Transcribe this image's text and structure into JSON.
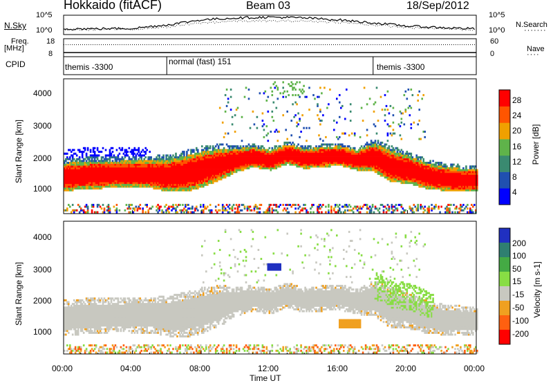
{
  "header": {
    "station": "Hokkaido (fitACF)",
    "beam": "Beam 03",
    "date": "18/Sep/2012"
  },
  "left_labels": {
    "nsky": "N.Sky",
    "freq_line1": "Freq.",
    "freq_line2": "[MHz]",
    "cpid": "CPID"
  },
  "right_labels": {
    "nsearch": "N.Search",
    "nave": "Nave"
  },
  "chart_data": [
    {
      "type": "line",
      "panel": "noise",
      "left_ticks": [
        "10^5",
        "10^0"
      ],
      "right_ticks": [
        "10^5",
        "10^0"
      ],
      "series": [
        {
          "name": "N.Sky",
          "x": [
            0,
            2,
            4,
            6,
            8,
            10,
            12,
            14,
            16,
            18,
            20,
            22,
            24
          ],
          "values": [
            1.5,
            1.5,
            1.6,
            2.5,
            3.8,
            4.3,
            4.5,
            4.3,
            3.8,
            3.0,
            2.2,
            1.8,
            1.5
          ]
        },
        {
          "name": "N.Search",
          "x": [
            0,
            2,
            4,
            6,
            8,
            10,
            12,
            14,
            16,
            18,
            20,
            22,
            24
          ],
          "values": [
            1.2,
            1.3,
            1.4,
            2.0,
            3.0,
            3.5,
            3.5,
            3.5,
            3.2,
            2.5,
            1.8,
            1.5,
            1.2
          ]
        }
      ]
    },
    {
      "type": "line",
      "panel": "freq_nave",
      "left_ticks": [
        "18",
        "8"
      ],
      "right_ticks": [
        "60",
        "0"
      ],
      "series": [
        {
          "name": "Freq.",
          "x": [
            0,
            24
          ],
          "values": [
            10.3,
            10.3
          ]
        },
        {
          "name": "Nave",
          "x": [
            0,
            24
          ],
          "values": [
            40,
            40
          ]
        }
      ]
    },
    {
      "type": "table",
      "panel": "cpid",
      "segments": [
        {
          "label": "themis -3300",
          "start": 0,
          "end": 6
        },
        {
          "label": "normal (fast) 151",
          "start": 6,
          "end": 18
        },
        {
          "label": "themis -3300",
          "start": 18,
          "end": 24
        }
      ]
    },
    {
      "type": "heatmap",
      "panel": "power",
      "ylabel": "Slant Range [km]",
      "yticks": [
        "4000",
        "3000",
        "2000",
        "1000"
      ],
      "ylim": [
        180,
        4600
      ],
      "colorbar_label": "Power [dB]",
      "colorbar_ticks": [
        "28",
        "24",
        "20",
        "16",
        "12",
        "8",
        "4"
      ],
      "colorbar_range": [
        0,
        32
      ],
      "colors": [
        "#0000ff",
        "#2050b0",
        "#3a8a70",
        "#5fb34a",
        "#f0a000",
        "#ff5500",
        "#ff0000"
      ],
      "band_x": [
        0,
        1,
        2,
        3,
        4,
        5,
        6,
        7,
        8,
        9,
        10,
        11,
        12,
        13,
        14,
        15,
        16,
        17,
        18,
        19,
        20,
        21,
        22,
        23,
        24
      ],
      "band_center_km": [
        1350,
        1400,
        1420,
        1450,
        1450,
        1450,
        1400,
        1450,
        1600,
        1750,
        1900,
        2000,
        1900,
        2100,
        1950,
        2000,
        2050,
        1900,
        2000,
        1700,
        1600,
        1400,
        1300,
        1250,
        1250
      ],
      "band_width_km": [
        700,
        700,
        700,
        650,
        700,
        700,
        800,
        900,
        900,
        800,
        600,
        500,
        500,
        500,
        500,
        500,
        500,
        500,
        700,
        800,
        700,
        650,
        600,
        600,
        600
      ]
    },
    {
      "type": "heatmap",
      "panel": "velocity",
      "ylabel": "Slant Range [km]",
      "yticks": [
        "4000",
        "3000",
        "2000",
        "1000"
      ],
      "ylim": [
        180,
        4600
      ],
      "colorbar_label": "Velocity [m s-1]",
      "colorbar_ticks": [
        "200",
        "100",
        "50",
        "15",
        "-15",
        "-50",
        "-100",
        "-200"
      ],
      "colorbar_range": [
        -250,
        250
      ],
      "colors": [
        "#2030c0",
        "#2f7f70",
        "#44aa44",
        "#88dd44",
        "#c8c8c0",
        "#f0a020",
        "#ff6010",
        "#ff0000"
      ],
      "band_x": [
        0,
        1,
        2,
        3,
        4,
        5,
        6,
        7,
        8,
        9,
        10,
        11,
        12,
        13,
        14,
        15,
        16,
        17,
        18,
        19,
        20,
        21,
        22,
        23,
        24
      ],
      "band_center_km": [
        1350,
        1400,
        1420,
        1450,
        1450,
        1450,
        1400,
        1450,
        1600,
        1750,
        1900,
        2000,
        1900,
        2100,
        1950,
        2000,
        2050,
        1900,
        2000,
        1700,
        1600,
        1400,
        1300,
        1250,
        1250
      ]
    }
  ],
  "xaxis": {
    "ticks": [
      "00:00",
      "04:00",
      "08:00",
      "12:00",
      "16:00",
      "20:00",
      "00:00"
    ],
    "label": "Time UT",
    "range": [
      0,
      24
    ]
  }
}
